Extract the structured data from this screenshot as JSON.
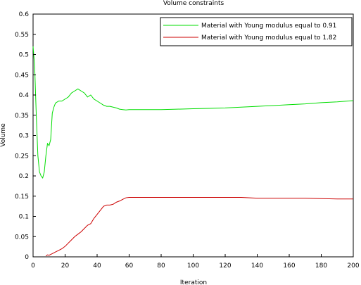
{
  "chart_data": {
    "type": "line",
    "title": "Volume constraints",
    "xlabel": "Iteration",
    "ylabel": "Volume",
    "xlim": [
      0,
      200
    ],
    "ylim": [
      0,
      0.6
    ],
    "xticks": [
      "0",
      "20",
      "40",
      "60",
      "80",
      "100",
      "120",
      "140",
      "160",
      "180",
      "200"
    ],
    "yticks": [
      "0",
      "0.05",
      "0.1",
      "0.15",
      "0.2",
      "0.25",
      "0.3",
      "0.35",
      "0.4",
      "0.45",
      "0.5",
      "0.55",
      "0.6"
    ],
    "grid": false,
    "legend_position": "top-right",
    "series": [
      {
        "name": "Material with Young modulus equal to 0.91",
        "color": "#00dd00",
        "x": [
          0,
          1,
          2,
          3,
          4,
          5,
          6,
          7,
          8,
          9,
          10,
          11,
          12,
          13,
          14,
          16,
          18,
          20,
          22,
          24,
          26,
          28,
          30,
          32,
          34,
          36,
          38,
          40,
          42,
          44,
          46,
          48,
          50,
          52,
          54,
          56,
          58,
          60,
          70,
          80,
          90,
          100,
          110,
          120,
          130,
          140,
          150,
          160,
          170,
          180,
          190,
          200
        ],
        "y": [
          0.52,
          0.47,
          0.35,
          0.25,
          0.21,
          0.2,
          0.195,
          0.21,
          0.25,
          0.28,
          0.275,
          0.29,
          0.355,
          0.37,
          0.38,
          0.385,
          0.385,
          0.39,
          0.395,
          0.405,
          0.41,
          0.415,
          0.41,
          0.405,
          0.395,
          0.4,
          0.39,
          0.385,
          0.38,
          0.375,
          0.372,
          0.372,
          0.37,
          0.368,
          0.365,
          0.364,
          0.363,
          0.364,
          0.364,
          0.364,
          0.365,
          0.366,
          0.367,
          0.368,
          0.37,
          0.372,
          0.374,
          0.376,
          0.378,
          0.381,
          0.383,
          0.386
        ]
      },
      {
        "name": "Material with Young modulus equal to 1.82",
        "color": "#cc0000",
        "x": [
          8,
          9,
          10,
          11,
          12,
          14,
          16,
          18,
          20,
          22,
          24,
          26,
          28,
          30,
          32,
          34,
          36,
          38,
          40,
          42,
          44,
          46,
          48,
          50,
          52,
          54,
          56,
          58,
          60,
          70,
          80,
          90,
          100,
          110,
          120,
          130,
          140,
          150,
          160,
          170,
          180,
          190,
          200
        ],
        "y": [
          0.002,
          0.005,
          0.004,
          0.006,
          0.008,
          0.012,
          0.016,
          0.02,
          0.026,
          0.034,
          0.042,
          0.05,
          0.056,
          0.062,
          0.07,
          0.078,
          0.082,
          0.095,
          0.105,
          0.115,
          0.125,
          0.128,
          0.128,
          0.13,
          0.135,
          0.138,
          0.142,
          0.146,
          0.147,
          0.147,
          0.147,
          0.147,
          0.147,
          0.147,
          0.147,
          0.147,
          0.145,
          0.145,
          0.145,
          0.145,
          0.144,
          0.143,
          0.143
        ]
      }
    ]
  }
}
